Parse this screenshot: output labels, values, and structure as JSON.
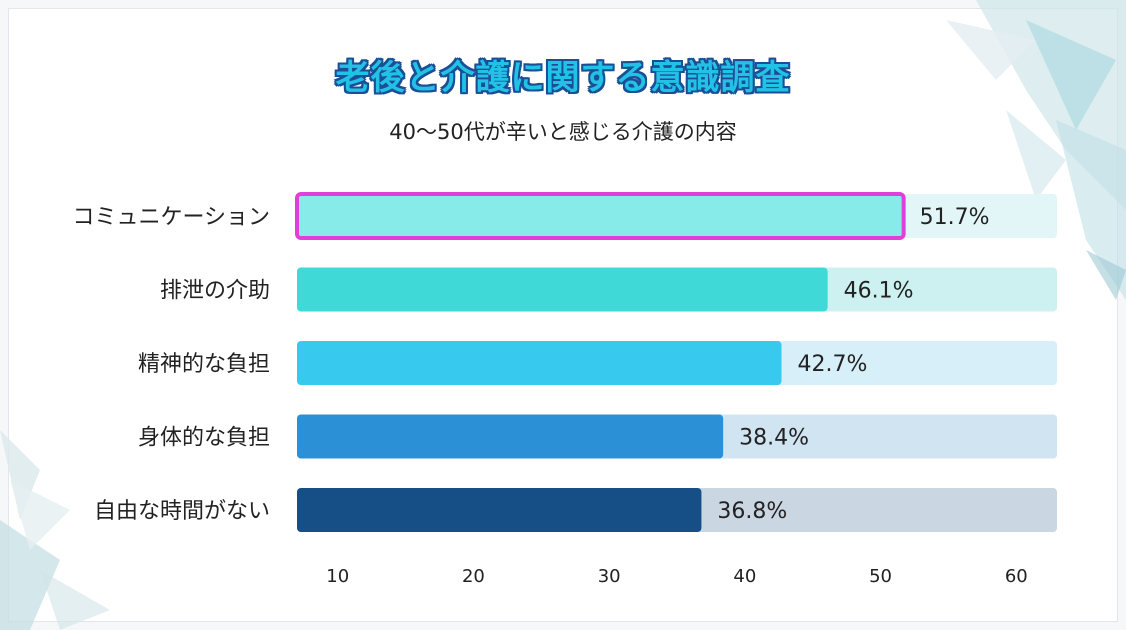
{
  "colors": {
    "title_fill": "#22c2e6",
    "title_outline": "#1a4f96",
    "highlight_border": "#e03fd8",
    "bar_colors": [
      "#86ebe9",
      "#3fdad8",
      "#38c9ee",
      "#2b90d6",
      "#154f86"
    ],
    "track_colors": [
      "#e3f6f7",
      "#cdf1f0",
      "#d6eff8",
      "#d0e4f2",
      "#cad6e2"
    ]
  },
  "chart_data": {
    "type": "bar",
    "orientation": "horizontal",
    "title": "老後と介護に関する意識調査",
    "subtitle": "40～50代が辛いと感じる介護の内容",
    "categories": [
      "コミュニケーション",
      "排泄の介助",
      "精神的な負担",
      "身体的な負担",
      "自由な時間がない"
    ],
    "values": [
      51.7,
      46.1,
      42.7,
      38.4,
      36.8
    ],
    "value_labels": [
      "51.7%",
      "46.1%",
      "42.7%",
      "38.4%",
      "36.8%"
    ],
    "highlighted_index": 0,
    "xlim": [
      7,
      63
    ],
    "x_ticks": [
      10,
      20,
      30,
      40,
      50,
      60
    ],
    "x_tick_labels": [
      "10",
      "20",
      "30",
      "40",
      "50",
      "60"
    ],
    "grid": false,
    "legend": "none"
  }
}
